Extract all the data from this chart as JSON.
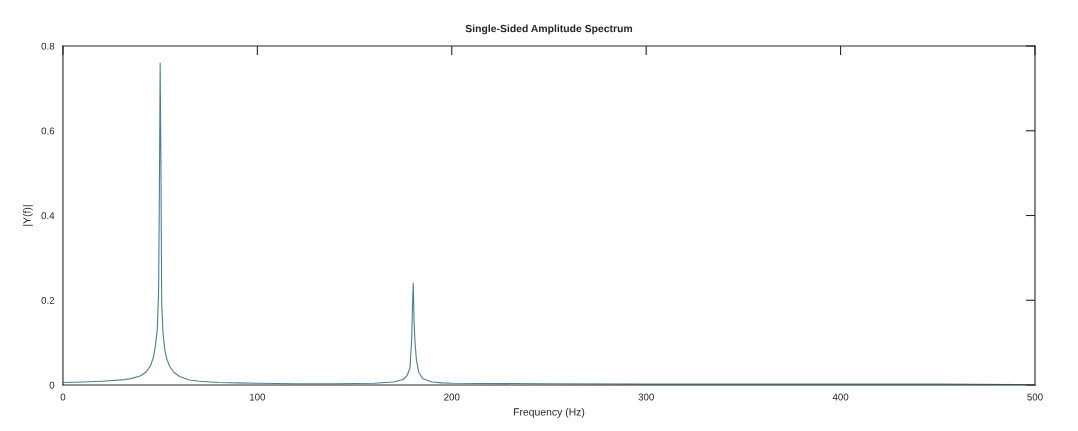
{
  "chart_data": {
    "type": "line",
    "title": "Single-Sided Amplitude Spectrum",
    "xlabel": "Frequency (Hz)",
    "ylabel": "|Y(f)|",
    "x": [
      0,
      10,
      20,
      30,
      35,
      40,
      43,
      45,
      46.5,
      47.5,
      48.5,
      49.2,
      49.6,
      50,
      50.4,
      50.8,
      51.5,
      52.5,
      53.5,
      55,
      57,
      60,
      65,
      70,
      80,
      90,
      100,
      120,
      140,
      160,
      170,
      175,
      177,
      178.5,
      179.4,
      179.8,
      180.2,
      180.6,
      181.1,
      181.8,
      183,
      185,
      190,
      195,
      200,
      250,
      300,
      350,
      400,
      450,
      500
    ],
    "series": [
      {
        "color": "#4f7f92",
        "values": [
          0.006,
          0.007,
          0.009,
          0.012,
          0.015,
          0.022,
          0.032,
          0.045,
          0.065,
          0.09,
          0.13,
          0.22,
          0.45,
          0.76,
          0.52,
          0.19,
          0.12,
          0.08,
          0.06,
          0.043,
          0.03,
          0.02,
          0.012,
          0.009,
          0.006,
          0.005,
          0.004,
          0.003,
          0.003,
          0.004,
          0.007,
          0.013,
          0.022,
          0.04,
          0.11,
          0.19,
          0.24,
          0.15,
          0.1,
          0.06,
          0.03,
          0.015,
          0.007,
          0.005,
          0.004,
          0.003,
          0.002,
          0.002,
          0.002,
          0.002,
          0.001
        ]
      }
    ],
    "xlim": [
      0,
      500
    ],
    "xticks": [
      0,
      100,
      200,
      300,
      400,
      500
    ],
    "ylim": [
      0,
      0.8
    ],
    "yticks": [
      0,
      0.2,
      0.4,
      0.6,
      0.8
    ],
    "grid": false,
    "line_style": "solid"
  }
}
